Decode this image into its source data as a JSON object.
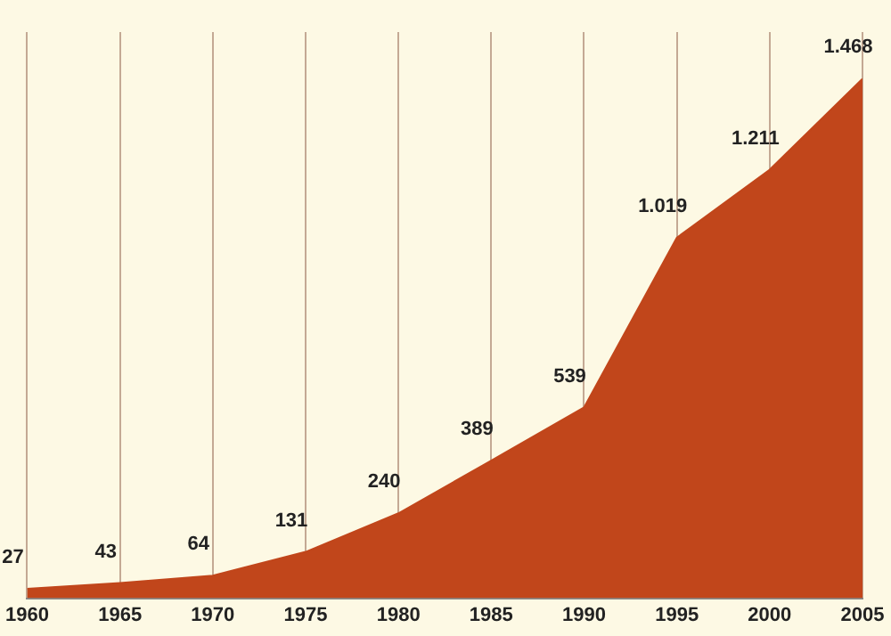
{
  "chart_data": {
    "type": "area",
    "x": [
      1960,
      1965,
      1970,
      1975,
      1980,
      1985,
      1990,
      1995,
      2000,
      2005
    ],
    "values": [
      27,
      43,
      64,
      131,
      240,
      389,
      539,
      1019,
      1211,
      1468
    ],
    "value_labels": [
      "27",
      "43",
      "64",
      "131",
      "240",
      "389",
      "539",
      "1.019",
      "1.211",
      "1.468"
    ],
    "color": "#c1461b",
    "xlim": [
      1960,
      2005
    ],
    "xticks": [
      1960,
      1965,
      1970,
      1975,
      1980,
      1985,
      1990,
      1995,
      2000,
      2005
    ],
    "grid": "x"
  }
}
